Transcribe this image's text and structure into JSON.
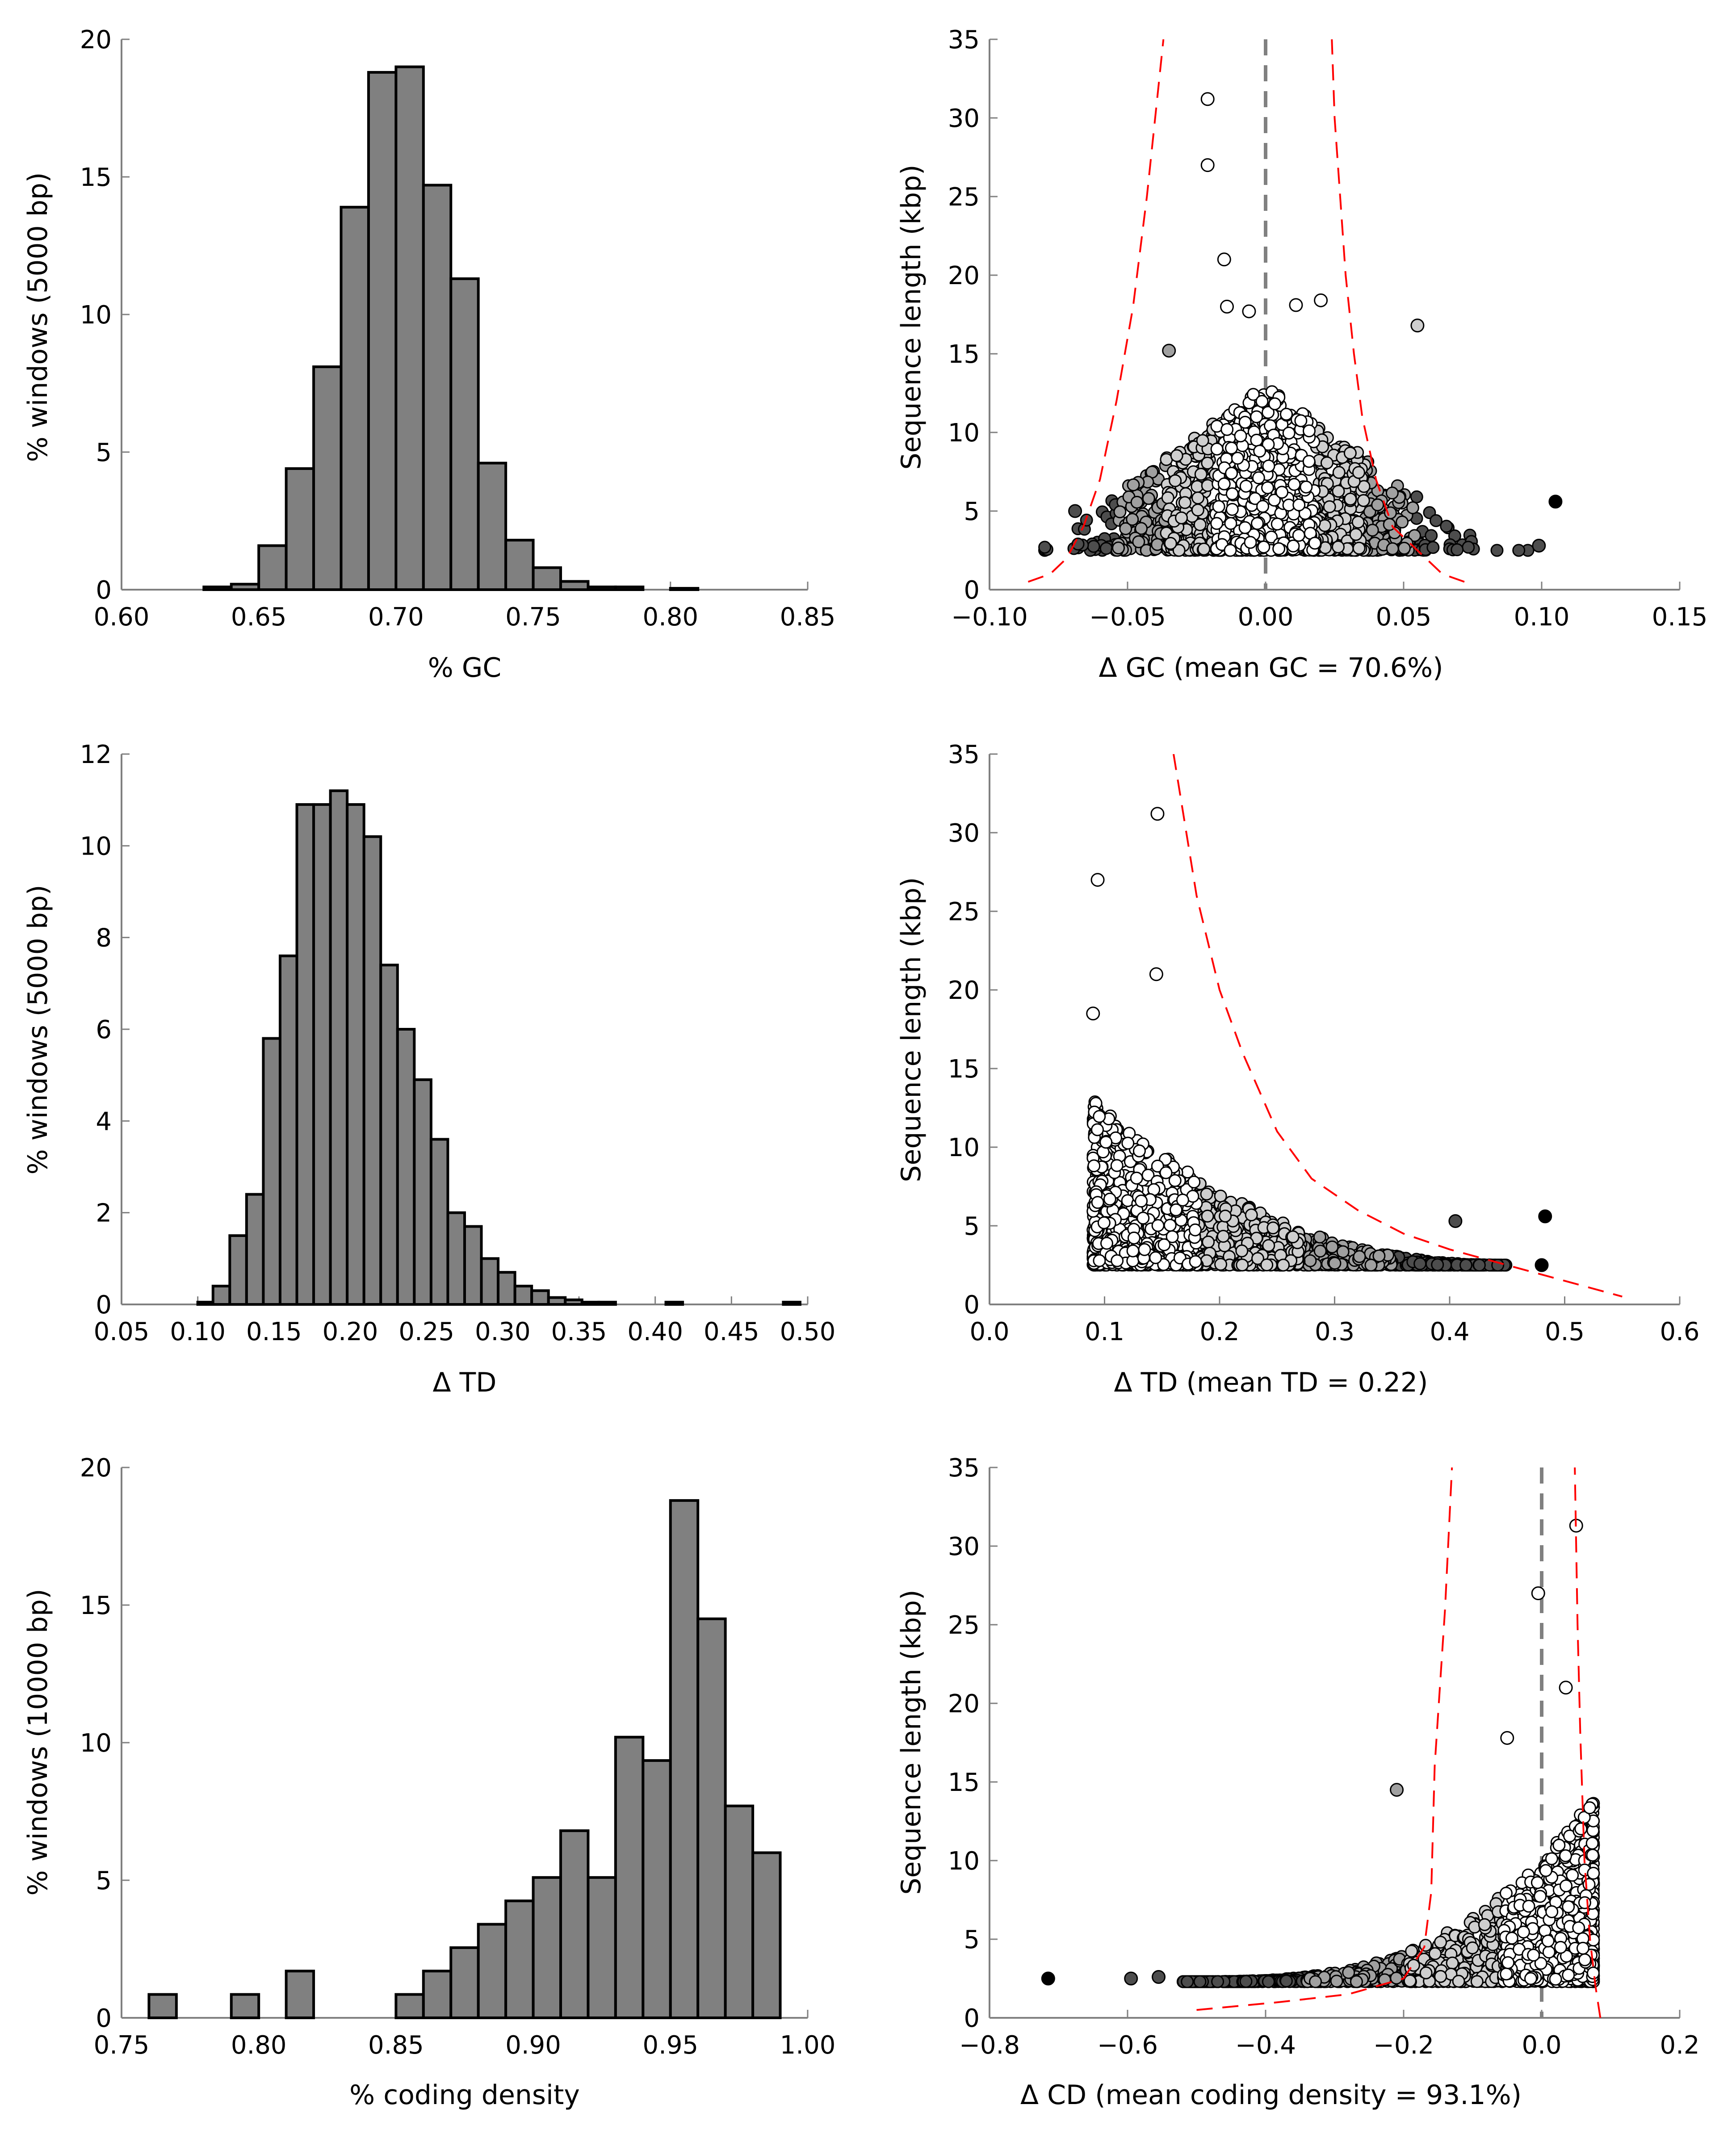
{
  "chart_data": [
    {
      "id": "gc-hist",
      "type": "bar",
      "xlabel": "% GC",
      "ylabel": "% windows (5000 bp)",
      "xlim": [
        0.6,
        0.85
      ],
      "ylim": [
        0,
        20
      ],
      "xticks": [
        "0.60",
        "0.65",
        "0.70",
        "0.75",
        "0.80",
        "0.85"
      ],
      "yticks": [
        "0",
        "5",
        "10",
        "15",
        "20"
      ],
      "bins": [
        {
          "x0": 0.63,
          "x1": 0.64,
          "value": 0.1
        },
        {
          "x0": 0.64,
          "x1": 0.65,
          "value": 0.2
        },
        {
          "x0": 0.65,
          "x1": 0.66,
          "value": 1.6
        },
        {
          "x0": 0.66,
          "x1": 0.67,
          "value": 4.4
        },
        {
          "x0": 0.67,
          "x1": 0.68,
          "value": 8.1
        },
        {
          "x0": 0.68,
          "x1": 0.69,
          "value": 13.9
        },
        {
          "x0": 0.69,
          "x1": 0.7,
          "value": 18.8
        },
        {
          "x0": 0.7,
          "x1": 0.71,
          "value": 19.0
        },
        {
          "x0": 0.71,
          "x1": 0.72,
          "value": 14.7
        },
        {
          "x0": 0.72,
          "x1": 0.73,
          "value": 11.3
        },
        {
          "x0": 0.73,
          "x1": 0.74,
          "value": 4.6
        },
        {
          "x0": 0.74,
          "x1": 0.75,
          "value": 1.8
        },
        {
          "x0": 0.75,
          "x1": 0.76,
          "value": 0.8
        },
        {
          "x0": 0.76,
          "x1": 0.77,
          "value": 0.3
        },
        {
          "x0": 0.77,
          "x1": 0.78,
          "value": 0.1
        },
        {
          "x0": 0.78,
          "x1": 0.79,
          "value": 0.1
        },
        {
          "x0": 0.8,
          "x1": 0.81,
          "value": 0.05
        }
      ],
      "bar_color": "#808080"
    },
    {
      "id": "gc-scatter",
      "type": "scatter",
      "xlabel": "Δ GC (mean GC = 70.6%)",
      "ylabel": "Sequence length (kbp)",
      "xlim": [
        -0.1,
        0.15
      ],
      "ylim": [
        0,
        35
      ],
      "xticks": [
        "−0.10",
        "−0.05",
        "0.00",
        "0.05",
        "0.10",
        "0.15"
      ],
      "yticks": [
        "0",
        "5",
        "10",
        "15",
        "20",
        "25",
        "30",
        "35"
      ],
      "reference_line_x": 0.0,
      "bounds_left": [
        [
          -0.086,
          0.5
        ],
        [
          -0.078,
          1.0
        ],
        [
          -0.072,
          2.0
        ],
        [
          -0.066,
          4.0
        ],
        [
          -0.06,
          7.0
        ],
        [
          -0.054,
          12.0
        ],
        [
          -0.048,
          18.0
        ],
        [
          -0.043,
          25.0
        ],
        [
          -0.04,
          30.0
        ],
        [
          -0.037,
          35.0
        ]
      ],
      "bounds_right": [
        [
          0.072,
          0.5
        ],
        [
          0.064,
          1.0
        ],
        [
          0.058,
          2.0
        ],
        [
          0.052,
          3.0
        ],
        [
          0.046,
          4.0
        ],
        [
          0.04,
          7.0
        ],
        [
          0.035,
          11.0
        ],
        [
          0.032,
          15.0
        ],
        [
          0.029,
          20.0
        ],
        [
          0.027,
          25.0
        ],
        [
          0.025,
          30.0
        ],
        [
          0.024,
          35.0
        ]
      ],
      "highlight_points": [
        {
          "x": -0.021,
          "y": 31.2,
          "shade": "white"
        },
        {
          "x": -0.021,
          "y": 27.0,
          "shade": "white"
        },
        {
          "x": -0.015,
          "y": 21.0,
          "shade": "white"
        },
        {
          "x": 0.02,
          "y": 18.4,
          "shade": "white"
        },
        {
          "x": 0.011,
          "y": 18.1,
          "shade": "white"
        },
        {
          "x": -0.014,
          "y": 18.0,
          "shade": "white"
        },
        {
          "x": -0.006,
          "y": 17.7,
          "shade": "white"
        },
        {
          "x": 0.055,
          "y": 16.8,
          "shade": "light"
        },
        {
          "x": -0.035,
          "y": 15.2,
          "shade": "mid"
        },
        {
          "x": 0.105,
          "y": 5.6,
          "shade": "black"
        },
        {
          "x": 0.099,
          "y": 2.8,
          "shade": "dark"
        },
        {
          "x": -0.069,
          "y": 5.0,
          "shade": "dark"
        }
      ],
      "cluster": {
        "x_range": [
          -0.08,
          0.095
        ],
        "y_min": 2.5,
        "y_peak": 13.0,
        "n": 1400
      }
    },
    {
      "id": "td-hist",
      "type": "bar",
      "xlabel": "Δ TD",
      "ylabel": "% windows (5000 bp)",
      "xlim": [
        0.05,
        0.5
      ],
      "ylim": [
        0,
        12
      ],
      "xticks": [
        "0.05",
        "0.10",
        "0.15",
        "0.20",
        "0.25",
        "0.30",
        "0.35",
        "0.40",
        "0.45",
        "0.50"
      ],
      "yticks": [
        "0",
        "2",
        "4",
        "6",
        "8",
        "10",
        "12"
      ],
      "bins": [
        {
          "x0": 0.1,
          "x1": 0.11,
          "value": 0.05
        },
        {
          "x0": 0.11,
          "x1": 0.121,
          "value": 0.4
        },
        {
          "x0": 0.121,
          "x1": 0.132,
          "value": 1.5
        },
        {
          "x0": 0.132,
          "x1": 0.143,
          "value": 2.4
        },
        {
          "x0": 0.143,
          "x1": 0.154,
          "value": 5.8
        },
        {
          "x0": 0.154,
          "x1": 0.165,
          "value": 7.6
        },
        {
          "x0": 0.165,
          "x1": 0.176,
          "value": 10.9
        },
        {
          "x0": 0.176,
          "x1": 0.187,
          "value": 10.9
        },
        {
          "x0": 0.187,
          "x1": 0.198,
          "value": 11.2
        },
        {
          "x0": 0.198,
          "x1": 0.209,
          "value": 10.9
        },
        {
          "x0": 0.209,
          "x1": 0.22,
          "value": 10.2
        },
        {
          "x0": 0.22,
          "x1": 0.231,
          "value": 7.4
        },
        {
          "x0": 0.231,
          "x1": 0.242,
          "value": 6.0
        },
        {
          "x0": 0.242,
          "x1": 0.253,
          "value": 4.9
        },
        {
          "x0": 0.253,
          "x1": 0.264,
          "value": 3.6
        },
        {
          "x0": 0.264,
          "x1": 0.275,
          "value": 2.0
        },
        {
          "x0": 0.275,
          "x1": 0.286,
          "value": 1.7
        },
        {
          "x0": 0.286,
          "x1": 0.297,
          "value": 1.0
        },
        {
          "x0": 0.297,
          "x1": 0.308,
          "value": 0.7
        },
        {
          "x0": 0.308,
          "x1": 0.319,
          "value": 0.4
        },
        {
          "x0": 0.319,
          "x1": 0.33,
          "value": 0.3
        },
        {
          "x0": 0.33,
          "x1": 0.341,
          "value": 0.15
        },
        {
          "x0": 0.341,
          "x1": 0.352,
          "value": 0.1
        },
        {
          "x0": 0.352,
          "x1": 0.363,
          "value": 0.05
        },
        {
          "x0": 0.363,
          "x1": 0.374,
          "value": 0.05
        },
        {
          "x0": 0.407,
          "x1": 0.418,
          "value": 0.05
        },
        {
          "x0": 0.484,
          "x1": 0.495,
          "value": 0.05
        }
      ],
      "bar_color": "#808080"
    },
    {
      "id": "td-scatter",
      "type": "scatter",
      "xlabel": "Δ TD (mean TD = 0.22)",
      "ylabel": "Sequence length (kbp)",
      "xlim": [
        0.0,
        0.6
      ],
      "ylim": [
        0,
        35
      ],
      "xticks": [
        "0.0",
        "0.1",
        "0.2",
        "0.3",
        "0.4",
        "0.5",
        "0.6"
      ],
      "yticks": [
        "0",
        "5",
        "10",
        "15",
        "20",
        "25",
        "30",
        "35"
      ],
      "bounds_right": [
        [
          0.16,
          35.0
        ],
        [
          0.18,
          26.0
        ],
        [
          0.2,
          20.0
        ],
        [
          0.22,
          16.0
        ],
        [
          0.25,
          11.0
        ],
        [
          0.28,
          8.0
        ],
        [
          0.32,
          6.0
        ],
        [
          0.36,
          4.5
        ],
        [
          0.4,
          3.5
        ],
        [
          0.45,
          2.5
        ],
        [
          0.5,
          1.5
        ],
        [
          0.55,
          0.5
        ]
      ],
      "highlight_points": [
        {
          "x": 0.146,
          "y": 31.2,
          "shade": "white"
        },
        {
          "x": 0.094,
          "y": 27.0,
          "shade": "white"
        },
        {
          "x": 0.145,
          "y": 21.0,
          "shade": "white"
        },
        {
          "x": 0.09,
          "y": 18.5,
          "shade": "white"
        },
        {
          "x": 0.483,
          "y": 5.6,
          "shade": "black"
        },
        {
          "x": 0.48,
          "y": 2.5,
          "shade": "black"
        },
        {
          "x": 0.405,
          "y": 5.3,
          "shade": "dark"
        }
      ],
      "cluster": {
        "x_range": [
          0.09,
          0.45
        ],
        "y_min": 2.5,
        "y_peak": 13.0,
        "n": 1400
      }
    },
    {
      "id": "cd-hist",
      "type": "bar",
      "xlabel": "% coding density",
      "ylabel": "% windows (10000 bp)",
      "xlim": [
        0.75,
        1.0
      ],
      "ylim": [
        0,
        20
      ],
      "xticks": [
        "0.75",
        "0.80",
        "0.85",
        "0.90",
        "0.95",
        "1.00"
      ],
      "yticks": [
        "0",
        "5",
        "10",
        "15",
        "20"
      ],
      "bins": [
        {
          "x0": 0.76,
          "x1": 0.77,
          "value": 0.85
        },
        {
          "x0": 0.79,
          "x1": 0.8,
          "value": 0.85
        },
        {
          "x0": 0.81,
          "x1": 0.82,
          "value": 1.7
        },
        {
          "x0": 0.85,
          "x1": 0.86,
          "value": 0.85
        },
        {
          "x0": 0.86,
          "x1": 0.87,
          "value": 1.7
        },
        {
          "x0": 0.87,
          "x1": 0.88,
          "value": 2.55
        },
        {
          "x0": 0.88,
          "x1": 0.89,
          "value": 3.4
        },
        {
          "x0": 0.89,
          "x1": 0.9,
          "value": 4.25
        },
        {
          "x0": 0.9,
          "x1": 0.91,
          "value": 5.1
        },
        {
          "x0": 0.91,
          "x1": 0.92,
          "value": 6.8
        },
        {
          "x0": 0.92,
          "x1": 0.93,
          "value": 5.1
        },
        {
          "x0": 0.93,
          "x1": 0.94,
          "value": 10.2
        },
        {
          "x0": 0.94,
          "x1": 0.95,
          "value": 9.35
        },
        {
          "x0": 0.95,
          "x1": 0.96,
          "value": 18.8
        },
        {
          "x0": 0.96,
          "x1": 0.97,
          "value": 14.5
        },
        {
          "x0": 0.97,
          "x1": 0.98,
          "value": 7.7
        },
        {
          "x0": 0.98,
          "x1": 0.99,
          "value": 6.0
        }
      ],
      "bar_color": "#808080"
    },
    {
      "id": "cd-scatter",
      "type": "scatter",
      "xlabel": "Δ CD (mean coding density = 93.1%)",
      "ylabel": "Sequence length (kbp)",
      "xlim": [
        -0.8,
        0.2
      ],
      "ylim": [
        0,
        35
      ],
      "xticks": [
        "−0.8",
        "−0.6",
        "−0.4",
        "−0.2",
        "0.0",
        "0.2"
      ],
      "yticks": [
        "0",
        "5",
        "10",
        "15",
        "20",
        "25",
        "30",
        "35"
      ],
      "reference_line_x": 0.0,
      "bounds_left": [
        [
          -0.5,
          0.5
        ],
        [
          -0.38,
          1.0
        ],
        [
          -0.28,
          1.5
        ],
        [
          -0.2,
          2.5
        ],
        [
          -0.17,
          4.5
        ],
        [
          -0.16,
          8.0
        ],
        [
          -0.155,
          16.0
        ],
        [
          -0.14,
          26.0
        ],
        [
          -0.13,
          35.0
        ]
      ],
      "bounds_right": [
        [
          0.085,
          0.0
        ],
        [
          0.078,
          2.0
        ],
        [
          0.07,
          5.0
        ],
        [
          0.062,
          10.0
        ],
        [
          0.056,
          18.0
        ],
        [
          0.052,
          25.0
        ],
        [
          0.048,
          35.0
        ]
      ],
      "highlight_points": [
        {
          "x": 0.05,
          "y": 31.3,
          "shade": "white"
        },
        {
          "x": -0.005,
          "y": 27.0,
          "shade": "white"
        },
        {
          "x": 0.035,
          "y": 21.0,
          "shade": "white"
        },
        {
          "x": -0.05,
          "y": 17.8,
          "shade": "white"
        },
        {
          "x": -0.21,
          "y": 14.5,
          "shade": "mid"
        },
        {
          "x": -0.715,
          "y": 2.5,
          "shade": "black"
        },
        {
          "x": -0.595,
          "y": 2.5,
          "shade": "dark"
        },
        {
          "x": -0.555,
          "y": 2.6,
          "shade": "dark"
        }
      ],
      "cluster": {
        "x_range": [
          -0.52,
          0.075
        ],
        "y_min": 2.3,
        "y_peak": 14.0,
        "n": 1500
      }
    }
  ]
}
